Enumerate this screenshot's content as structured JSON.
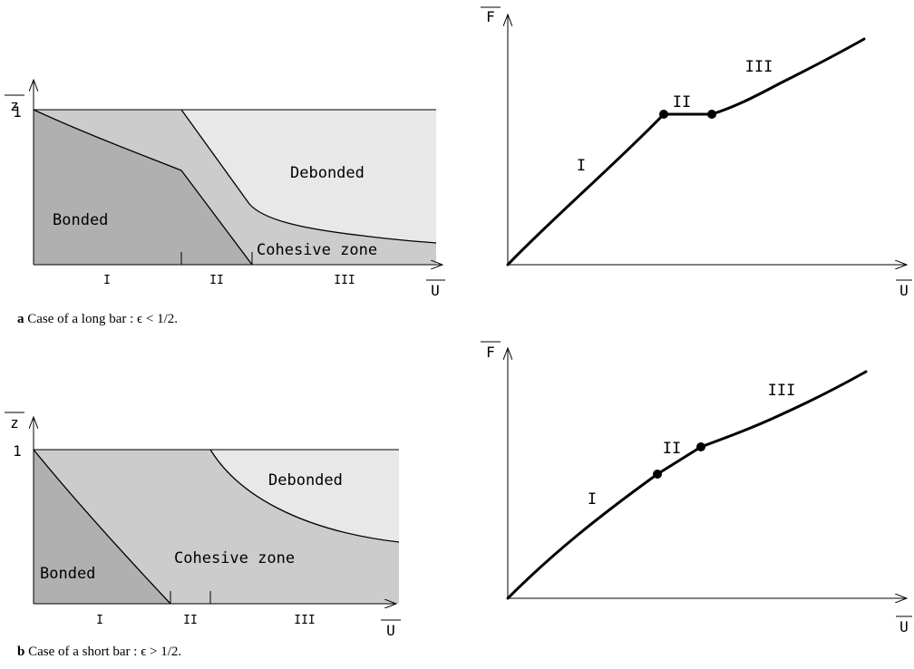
{
  "colors": {
    "bonded": "#b0b0b0",
    "cohesive": "#cccccc",
    "debonded": "#e8e8e8",
    "line": "#000000"
  },
  "panel_a": {
    "caption_bold": "a",
    "caption_text": " Case of a long bar : ϵ < 1/2.",
    "left": {
      "y_axis_label": "z",
      "x_axis_label": "U",
      "y_tick_label": "1",
      "regions": {
        "bonded": "Bonded",
        "cohesive": "Cohesive zone",
        "debonded": "Debonded"
      },
      "phases": [
        "I",
        "II",
        "III"
      ]
    },
    "right": {
      "y_axis_label": "F",
      "x_axis_label": "U",
      "phases": [
        "I",
        "II",
        "III"
      ]
    }
  },
  "panel_b": {
    "caption_bold": "b",
    "caption_text": " Case of a short bar : ϵ > 1/2.",
    "left": {
      "y_axis_label": "z",
      "x_axis_label": "U",
      "y_tick_label": "1",
      "regions": {
        "bonded": "Bonded",
        "cohesive": "Cohesive zone",
        "debonded": "Debonded"
      },
      "phases": [
        "I",
        "II",
        "III"
      ]
    },
    "right": {
      "y_axis_label": "F",
      "x_axis_label": "U",
      "phases": [
        "I",
        "II",
        "III"
      ]
    }
  }
}
